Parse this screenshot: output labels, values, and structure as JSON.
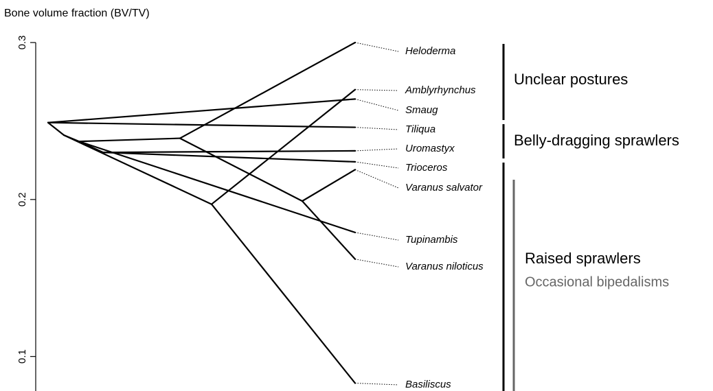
{
  "chart_data": {
    "type": "traitgram",
    "y_label": "Bone volume fraction (BV/TV)",
    "ylim": [
      0.078,
      0.3
    ],
    "yticks": [
      0.1,
      0.2,
      0.3
    ],
    "color": "#000000",
    "nodes": [
      {
        "value": 0.249,
        "parent": null
      },
      {
        "value": 0.241,
        "parent": 0
      },
      {
        "value": 0.197,
        "parent": 1
      },
      {
        "value": 0.237,
        "parent": 1
      },
      {
        "value": 0.239,
        "parent": 3
      },
      {
        "value": 0.23,
        "parent": 3
      },
      {
        "value": 0.199,
        "parent": 4
      },
      {
        "name": "Heloderma",
        "value": 0.3,
        "parent": 4
      },
      {
        "name": "Amblyrhynchus",
        "value": 0.27,
        "parent": 2
      },
      {
        "name": "Smaug",
        "value": 0.264,
        "parent": 0
      },
      {
        "name": "Tiliqua",
        "value": 0.246,
        "parent": 0
      },
      {
        "name": "Uromastyx",
        "value": 0.231,
        "parent": 5
      },
      {
        "name": "Trioceros",
        "value": 0.224,
        "parent": 5
      },
      {
        "name": "Varanus salvator",
        "value": 0.219,
        "parent": 6
      },
      {
        "name": "Tupinambis",
        "value": 0.179,
        "parent": 3
      },
      {
        "name": "Varanus niloticus",
        "value": 0.162,
        "parent": 6
      },
      {
        "name": "Basiliscus",
        "value": 0.083,
        "parent": 2
      }
    ],
    "groups": [
      {
        "label": "Unclear postures",
        "color": "#000000"
      },
      {
        "label": "Belly-dragging sprawlers",
        "color": "#000000"
      },
      {
        "label": "Raised sprawlers",
        "color": "#000000"
      },
      {
        "label": "Occasional bipedalisms",
        "color": "#666666"
      }
    ]
  }
}
